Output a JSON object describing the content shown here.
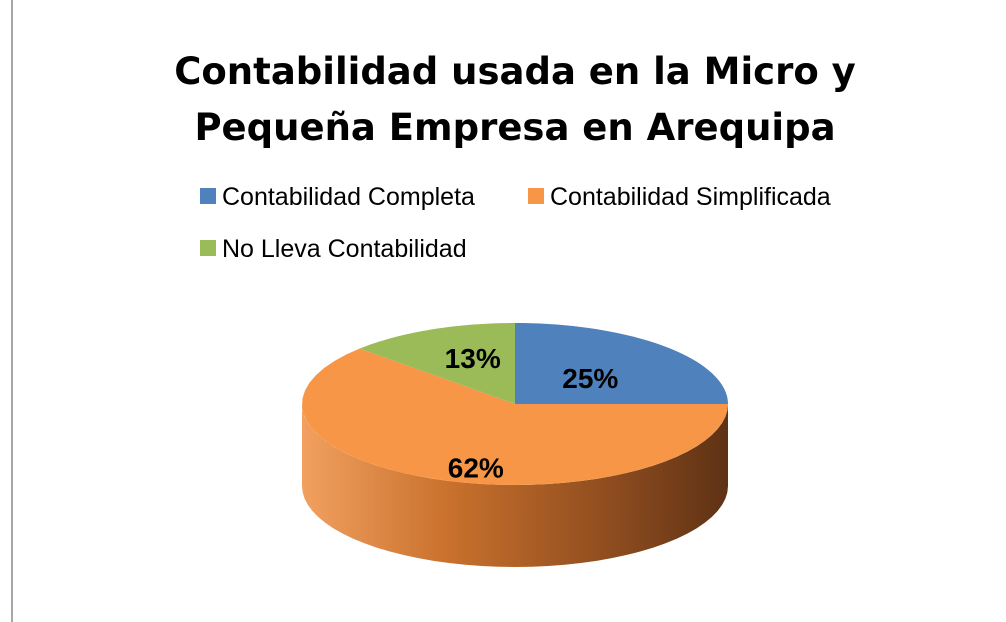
{
  "chart_data": {
    "type": "pie3d",
    "title": [
      "Contabilidad usada en la Micro y",
      "Pequeña Empresa en Arequipa"
    ],
    "categories": [
      "Contabilidad Completa",
      "Contabilidad Simplificada",
      "No Lleva Contabilidad"
    ],
    "values": [
      25,
      62,
      13
    ],
    "value_labels": [
      "25%",
      "62%",
      "13%"
    ],
    "colors": [
      "#4f81bd",
      "#f79646",
      "#9bbb59"
    ],
    "legend": "top"
  }
}
